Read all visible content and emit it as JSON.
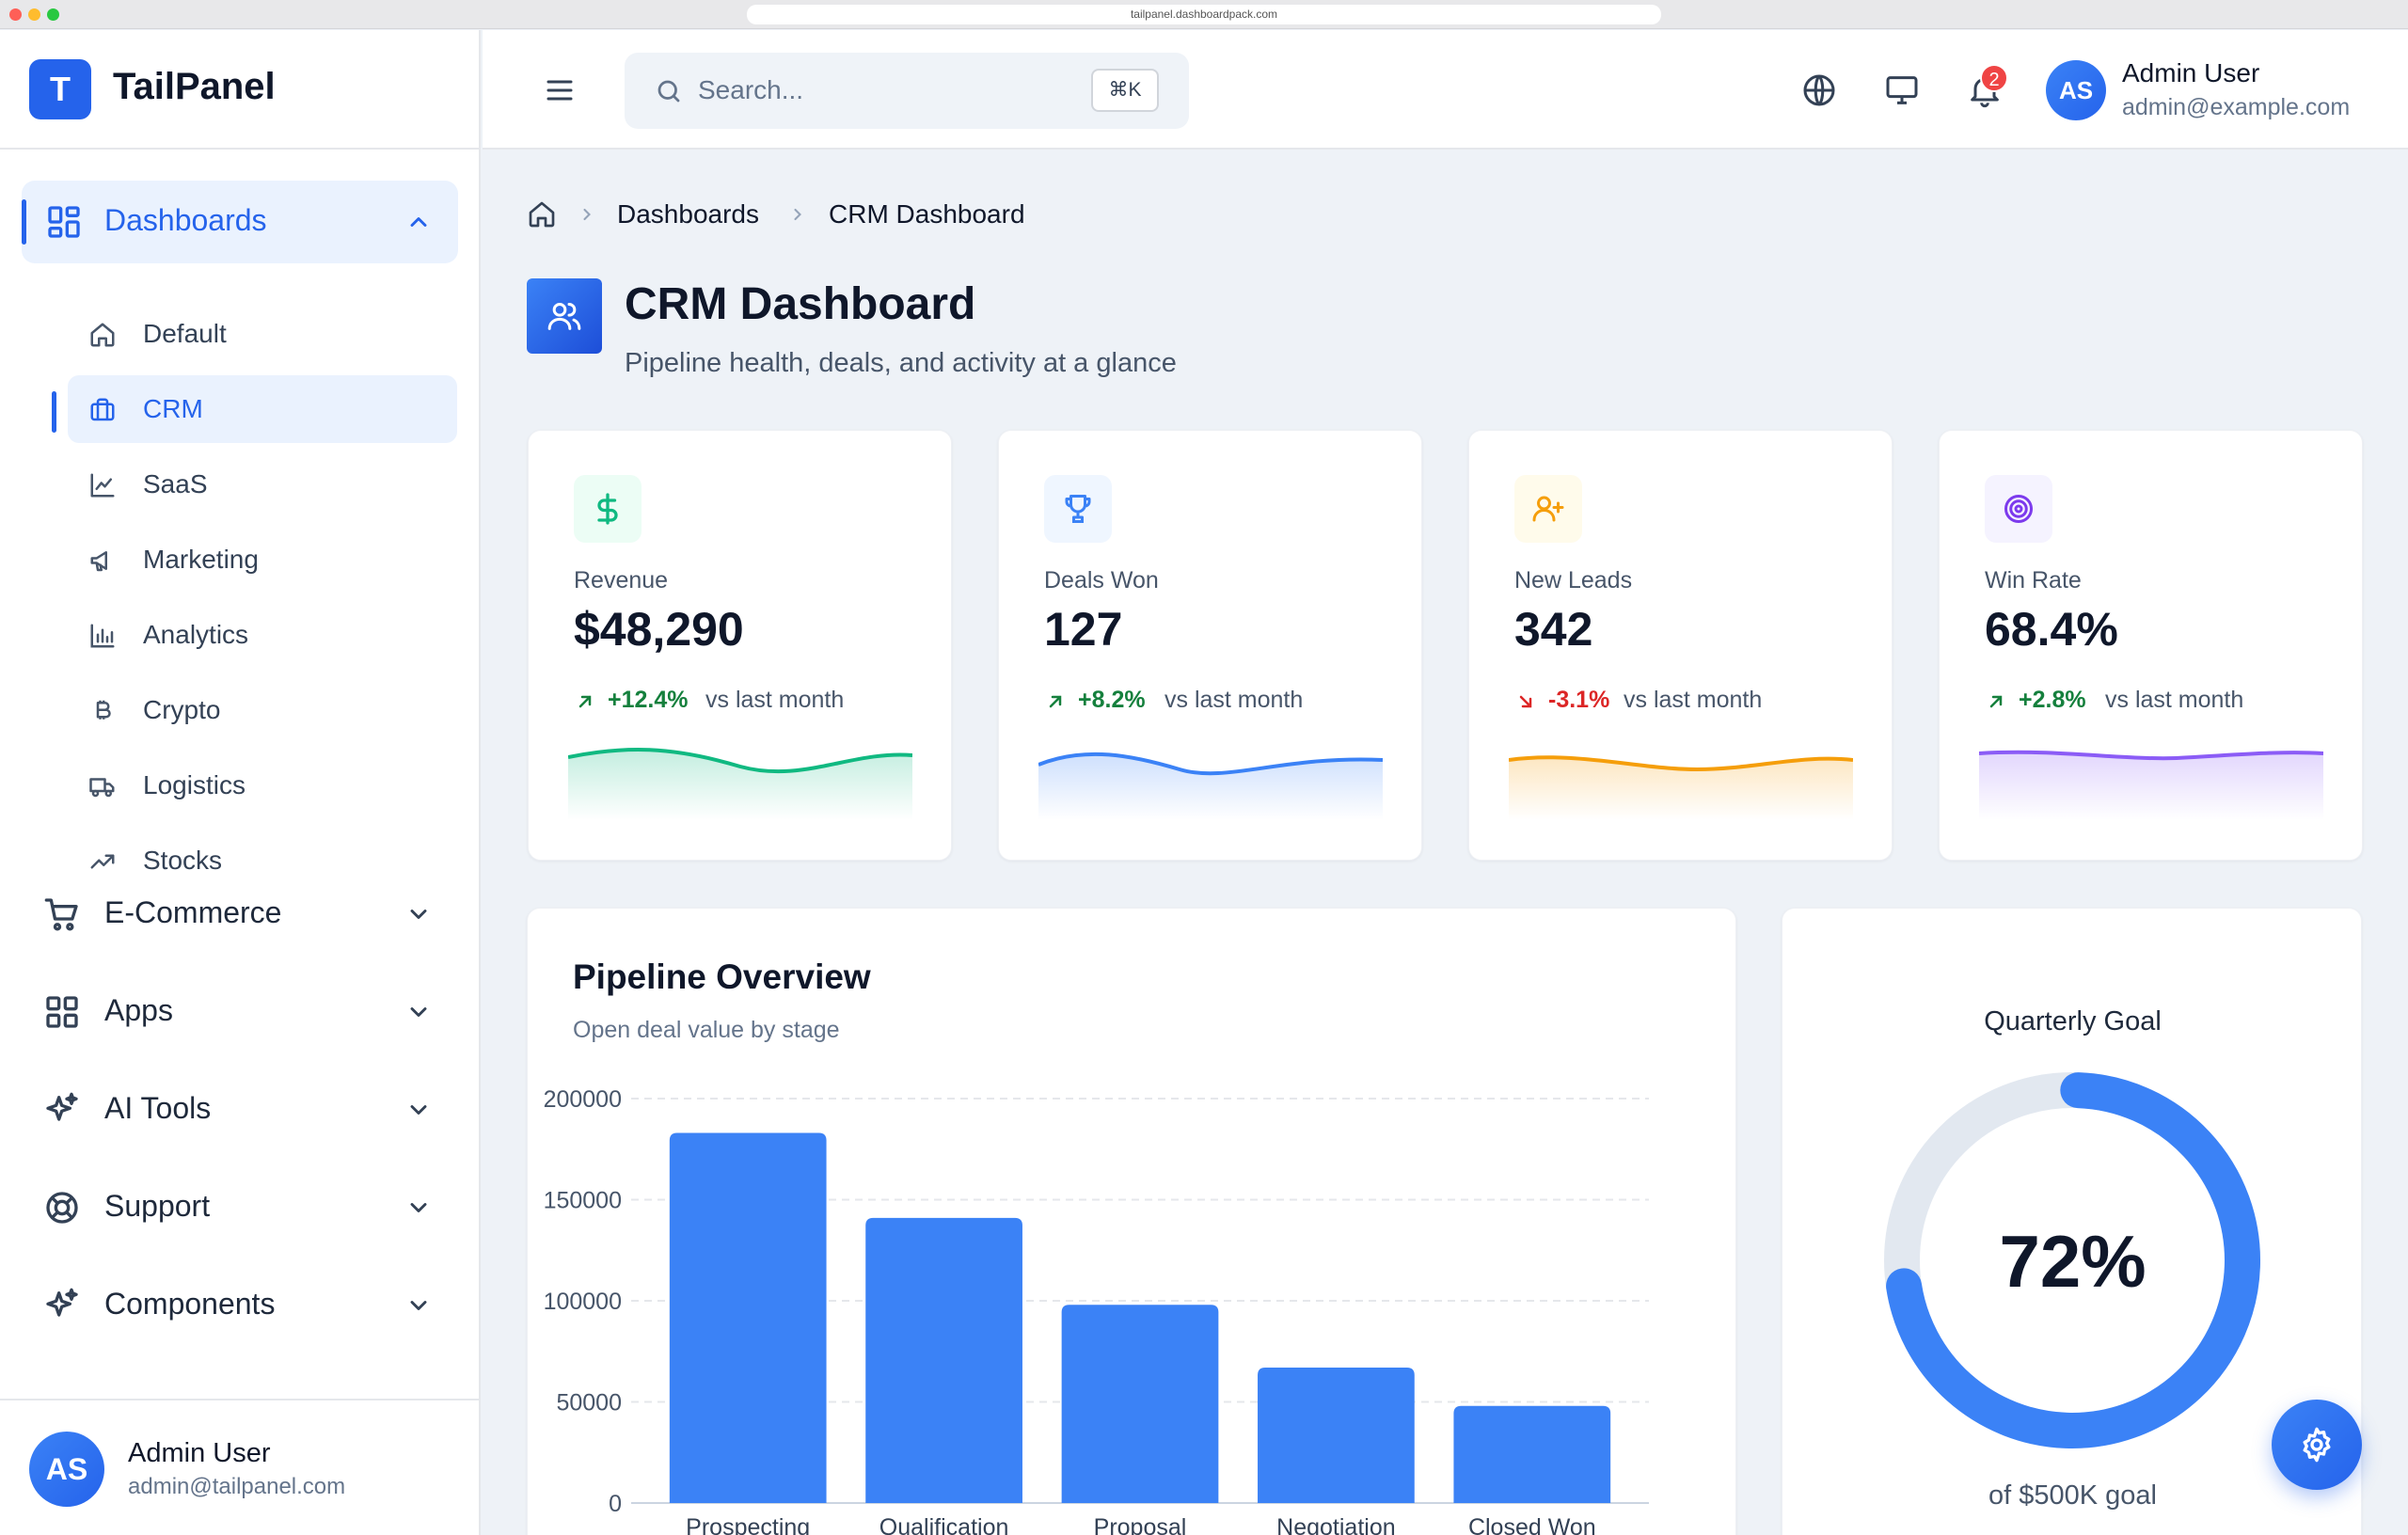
{
  "browser": {
    "url": "tailpanel.dashboardpack.com"
  },
  "brand": {
    "logo_letter": "T",
    "name": "TailPanel"
  },
  "sidebar": {
    "dashboards": {
      "label": "Dashboards",
      "icon": "dashboard-grid-icon"
    },
    "sub_items": [
      {
        "label": "Default",
        "icon": "home-icon"
      },
      {
        "label": "CRM",
        "icon": "briefcase-icon",
        "active": true
      },
      {
        "label": "SaaS",
        "icon": "line-chart-icon"
      },
      {
        "label": "Marketing",
        "icon": "megaphone-icon"
      },
      {
        "label": "Analytics",
        "icon": "bar-chart-icon"
      },
      {
        "label": "Crypto",
        "icon": "bitcoin-icon"
      },
      {
        "label": "Logistics",
        "icon": "truck-icon"
      },
      {
        "label": "Stocks",
        "icon": "trending-up-icon"
      }
    ],
    "groups": [
      {
        "label": "E-Commerce",
        "icon": "cart-icon"
      },
      {
        "label": "Apps",
        "icon": "apps-grid-icon"
      },
      {
        "label": "AI Tools",
        "icon": "sparkles-icon"
      },
      {
        "label": "Support",
        "icon": "lifebuoy-icon"
      },
      {
        "label": "Components",
        "icon": "sparkles-icon"
      }
    ],
    "user": {
      "initials": "AS",
      "name": "Admin User",
      "email": "admin@tailpanel.com"
    }
  },
  "topbar": {
    "search_placeholder": "Search...",
    "shortcut": "⌘K",
    "notification_count": "2",
    "user": {
      "initials": "AS",
      "name": "Admin User",
      "email": "admin@example.com"
    }
  },
  "breadcrumb": [
    "Dashboards",
    "CRM Dashboard"
  ],
  "header": {
    "title": "CRM Dashboard",
    "subtitle": "Pipeline health, deals, and activity at a glance"
  },
  "stats": [
    {
      "label": "Revenue",
      "value": "$48,290",
      "trend": "+12.4%",
      "direction": "up",
      "note": "vs last month",
      "color": "#10b981",
      "bg": "#ecfdf5",
      "icon": "dollar-icon"
    },
    {
      "label": "Deals Won",
      "value": "127",
      "trend": "+8.2%",
      "direction": "up",
      "note": "vs last month",
      "color": "#3b82f6",
      "bg": "#eff6ff",
      "icon": "trophy-icon"
    },
    {
      "label": "New Leads",
      "value": "342",
      "trend": "-3.1%",
      "direction": "down",
      "note": "vs last month",
      "color": "#f59e0b",
      "bg": "#fffbeb",
      "icon": "user-plus-icon"
    },
    {
      "label": "Win Rate",
      "value": "68.4%",
      "trend": "+2.8%",
      "direction": "up",
      "note": "vs last month",
      "color": "#8b5cf6",
      "bg": "#f5f3ff",
      "icon": "target-icon"
    }
  ],
  "pipeline": {
    "title": "Pipeline Overview",
    "subtitle": "Open deal value by stage"
  },
  "chart_data": {
    "type": "bar",
    "categories": [
      "Prospecting",
      "Qualification",
      "Proposal",
      "Negotiation",
      "Closed Won"
    ],
    "values": [
      183000,
      141000,
      98000,
      67000,
      48000
    ],
    "ylim": [
      0,
      200000
    ],
    "yticks": [
      0,
      50000,
      100000,
      150000,
      200000
    ],
    "color": "#3b82f6",
    "grid": true
  },
  "goal": {
    "title": "Quarterly Goal",
    "percent_label": "72%",
    "percent": 72,
    "note": "of $500K goal",
    "color": "#3b82f6",
    "track": "#e2e8f0"
  }
}
